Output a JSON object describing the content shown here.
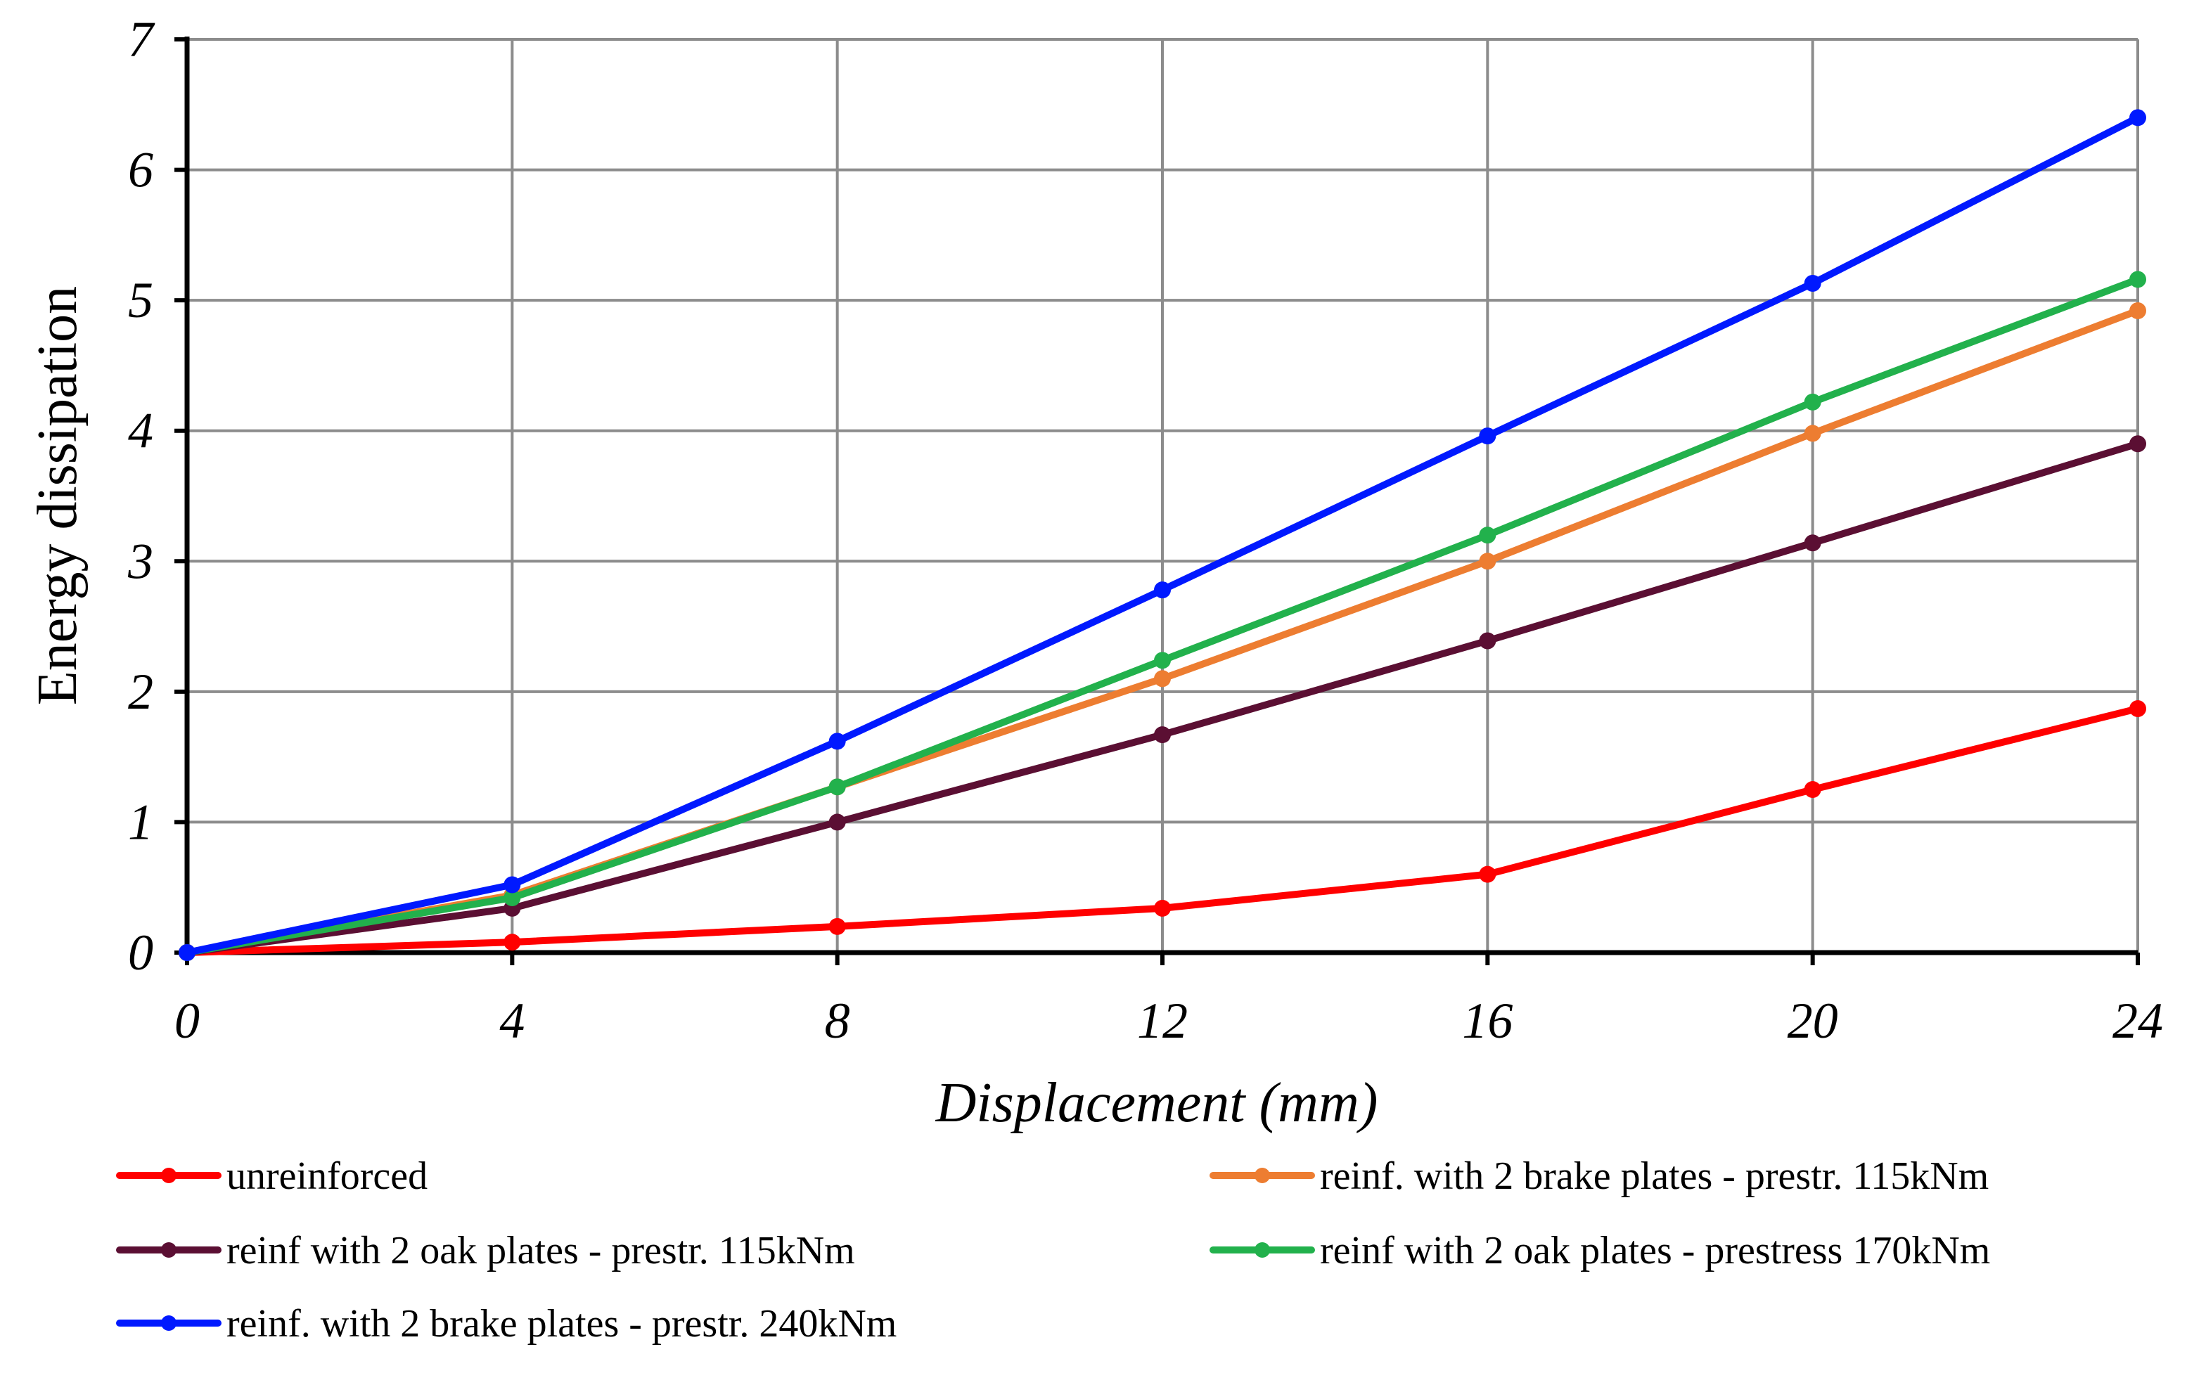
{
  "chart_data": {
    "type": "line",
    "title": "",
    "xlabel": "Displacement (mm)",
    "ylabel": "Energy dissipation",
    "x": [
      0,
      4,
      8,
      12,
      16,
      20,
      24
    ],
    "xlim": [
      0,
      24
    ],
    "ylim": [
      0,
      7
    ],
    "xticks": [
      0,
      4,
      8,
      12,
      16,
      20,
      24
    ],
    "yticks": [
      0,
      1,
      2,
      3,
      4,
      5,
      6,
      7
    ],
    "grid": true,
    "legend_position": "bottom",
    "series": [
      {
        "name": "unreinforced",
        "color": "#ff0000",
        "values": [
          0,
          0.08,
          0.2,
          0.34,
          0.6,
          1.25,
          1.87
        ]
      },
      {
        "name": "reinf. with 2 brake plates - prestr. 115kNm",
        "color": "#ed7d31",
        "values": [
          0,
          0.44,
          1.27,
          2.1,
          3.0,
          3.98,
          4.92
        ]
      },
      {
        "name": "reinf with 2 oak plates - prestr. 115kNm",
        "color": "#5b0f33",
        "values": [
          0,
          0.34,
          1.0,
          1.67,
          2.39,
          3.14,
          3.9
        ]
      },
      {
        "name": "reinf with 2 oak plates - prestress 170kNm",
        "color": "#22b14c",
        "values": [
          0,
          0.42,
          1.27,
          2.24,
          3.2,
          4.22,
          5.16
        ]
      },
      {
        "name": "reinf. with 2 brake plates - prestr. 240kNm",
        "color": "#0019ff",
        "values": [
          0,
          0.52,
          1.62,
          2.78,
          3.96,
          5.13,
          6.4
        ]
      }
    ]
  }
}
